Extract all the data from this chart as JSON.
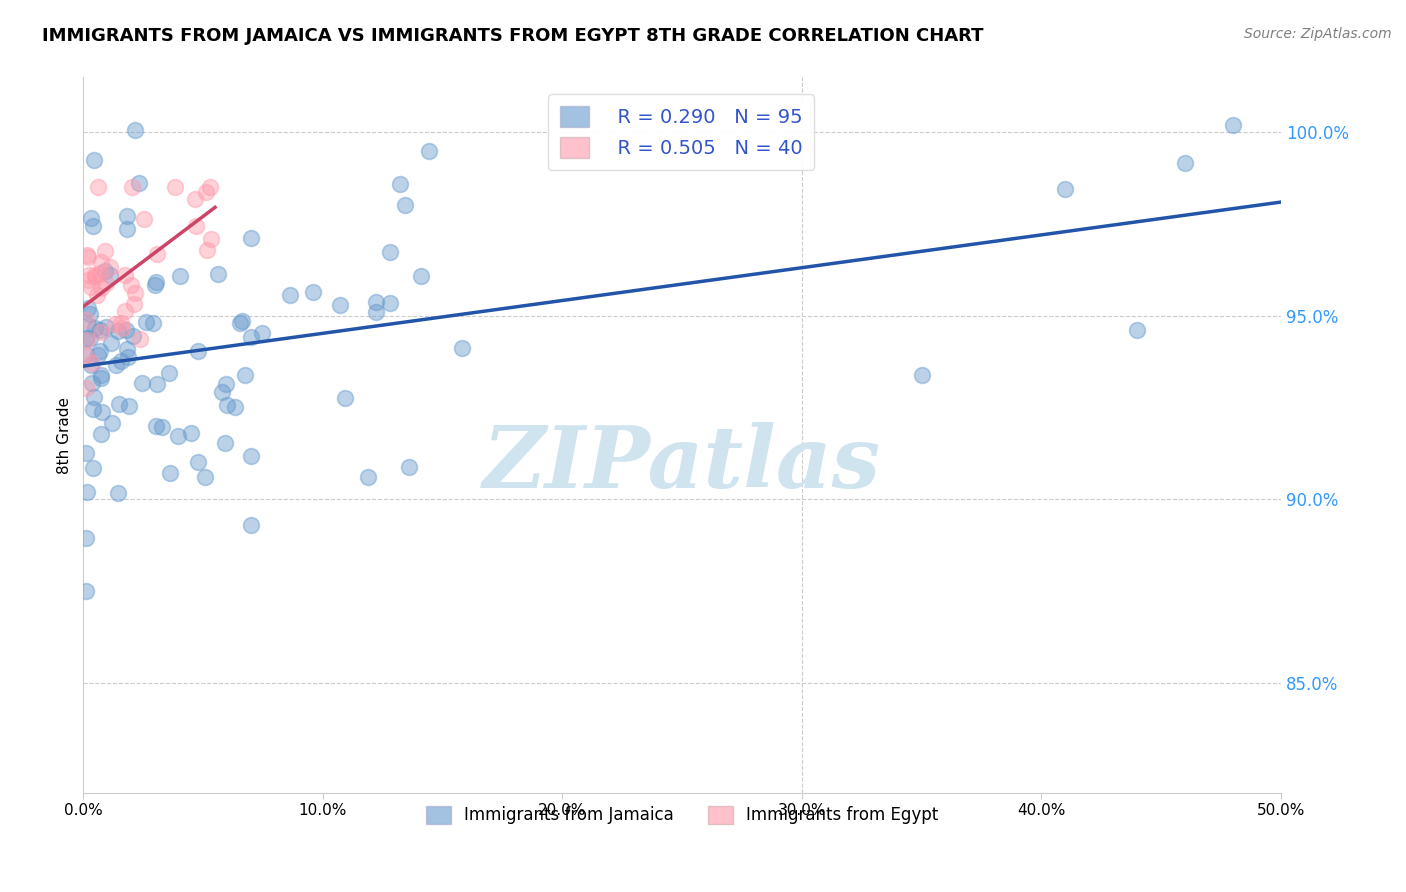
{
  "title": "IMMIGRANTS FROM JAMAICA VS IMMIGRANTS FROM EGYPT 8TH GRADE CORRELATION CHART",
  "source": "Source: ZipAtlas.com",
  "ylabel": "8th Grade",
  "ytick_labels": [
    "85.0%",
    "90.0%",
    "95.0%",
    "100.0%"
  ],
  "ytick_values": [
    0.85,
    0.9,
    0.95,
    1.0
  ],
  "xlim": [
    0.0,
    0.5
  ],
  "ylim": [
    0.82,
    1.015
  ],
  "legend_jamaica": "Immigrants from Jamaica",
  "legend_egypt": "Immigrants from Egypt",
  "r_jamaica": 0.29,
  "n_jamaica": 95,
  "r_egypt": 0.505,
  "n_egypt": 40,
  "color_jamaica": "#6699cc",
  "color_egypt": "#ff99aa",
  "trendline_jamaica": "#2255aa",
  "trendline_egypt": "#cc4466",
  "watermark": "ZIPatlas",
  "watermark_color": "#d0e4f0"
}
